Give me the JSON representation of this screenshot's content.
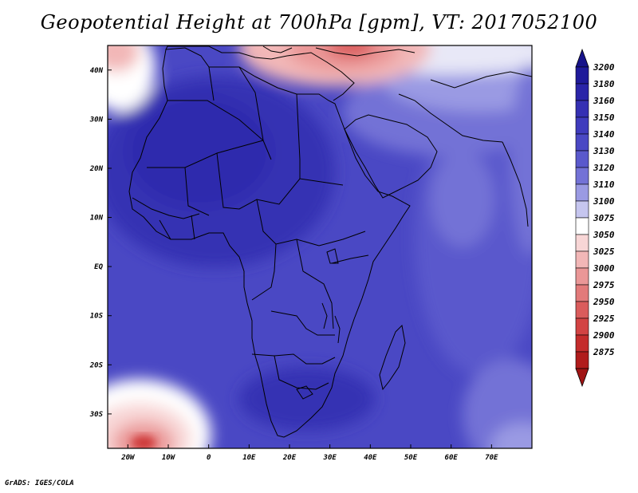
{
  "title": "Geopotential Height at 700hPa [gpm], VT: 2017052100",
  "credit": "GrADS: IGES/COLA",
  "map": {
    "lon_range": [
      -25,
      80
    ],
    "lat_range": [
      -37,
      45
    ],
    "lon_ticks": [
      {
        "value": -20,
        "label": "20W"
      },
      {
        "value": -10,
        "label": "10W"
      },
      {
        "value": 0,
        "label": "0"
      },
      {
        "value": 10,
        "label": "10E"
      },
      {
        "value": 20,
        "label": "20E"
      },
      {
        "value": 30,
        "label": "30E"
      },
      {
        "value": 40,
        "label": "40E"
      },
      {
        "value": 50,
        "label": "50E"
      },
      {
        "value": 60,
        "label": "60E"
      },
      {
        "value": 70,
        "label": "70E"
      }
    ],
    "lat_ticks": [
      {
        "value": 40,
        "label": "40N"
      },
      {
        "value": 30,
        "label": "30N"
      },
      {
        "value": 20,
        "label": "20N"
      },
      {
        "value": 10,
        "label": "10N"
      },
      {
        "value": 0,
        "label": "EQ"
      },
      {
        "value": -10,
        "label": "10S"
      },
      {
        "value": -20,
        "label": "20S"
      },
      {
        "value": -30,
        "label": "30S"
      }
    ]
  },
  "colorbar": {
    "levels": [
      {
        "label": "3200",
        "color": "#1f1a9a"
      },
      {
        "label": "3180",
        "color": "#2a24a8"
      },
      {
        "label": "3160",
        "color": "#3530b3"
      },
      {
        "label": "3150",
        "color": "#3f3bbd"
      },
      {
        "label": "3140",
        "color": "#4a48c4"
      },
      {
        "label": "3130",
        "color": "#5a59cc"
      },
      {
        "label": "3120",
        "color": "#7372d6"
      },
      {
        "label": "3110",
        "color": "#9a9ae3"
      },
      {
        "label": "3100",
        "color": "#c6c6ef"
      },
      {
        "label": "3075",
        "color": "#ffffff"
      },
      {
        "label": "3050",
        "color": "#f8d6d6"
      },
      {
        "label": "3025",
        "color": "#f2b7b7"
      },
      {
        "label": "3000",
        "color": "#ea9797"
      },
      {
        "label": "2975",
        "color": "#e27a7a"
      },
      {
        "label": "2950",
        "color": "#da5c5c"
      },
      {
        "label": "2925",
        "color": "#d24343"
      },
      {
        "label": "2900",
        "color": "#c42c2c"
      },
      {
        "label": "2875",
        "color": "#b01c1c"
      }
    ],
    "top_arrow_color": "#17138a",
    "bottom_arrow_color": "#a01414"
  }
}
